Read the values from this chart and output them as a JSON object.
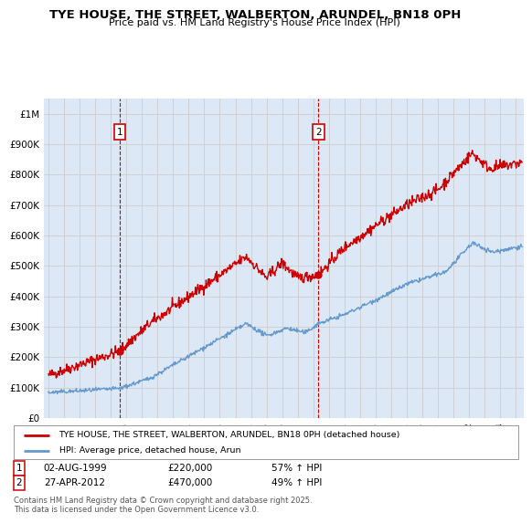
{
  "title": "TYE HOUSE, THE STREET, WALBERTON, ARUNDEL, BN18 0PH",
  "subtitle": "Price paid vs. HM Land Registry's House Price Index (HPI)",
  "legend_line1": "TYE HOUSE, THE STREET, WALBERTON, ARUNDEL, BN18 0PH (detached house)",
  "legend_line2": "HPI: Average price, detached house, Arun",
  "footer": "Contains HM Land Registry data © Crown copyright and database right 2025.\nThis data is licensed under the Open Government Licence v3.0.",
  "annotation1": {
    "num": "1",
    "date": "02-AUG-1999",
    "price": "£220,000",
    "pct": "57% ↑ HPI"
  },
  "annotation2": {
    "num": "2",
    "date": "27-APR-2012",
    "price": "£470,000",
    "pct": "49% ↑ HPI"
  },
  "red_color": "#cc0000",
  "blue_color": "#6699cc",
  "grid_color": "#cccccc",
  "bg_color": "#dce8f5",
  "ylim": [
    0,
    1050000
  ],
  "yticks": [
    0,
    100000,
    200000,
    300000,
    400000,
    500000,
    600000,
    700000,
    800000,
    900000,
    1000000
  ],
  "ytick_labels": [
    "£0",
    "£100K",
    "£200K",
    "£300K",
    "£400K",
    "£500K",
    "£600K",
    "£700K",
    "£800K",
    "£900K",
    "£1M"
  ],
  "sale1_x": 1999.58,
  "sale1_y": 220000,
  "sale2_x": 2012.32,
  "sale2_y": 470000,
  "vline1_x": 1999.58,
  "vline2_x": 2012.32,
  "xlim_min": 1994.7,
  "xlim_max": 2025.5
}
